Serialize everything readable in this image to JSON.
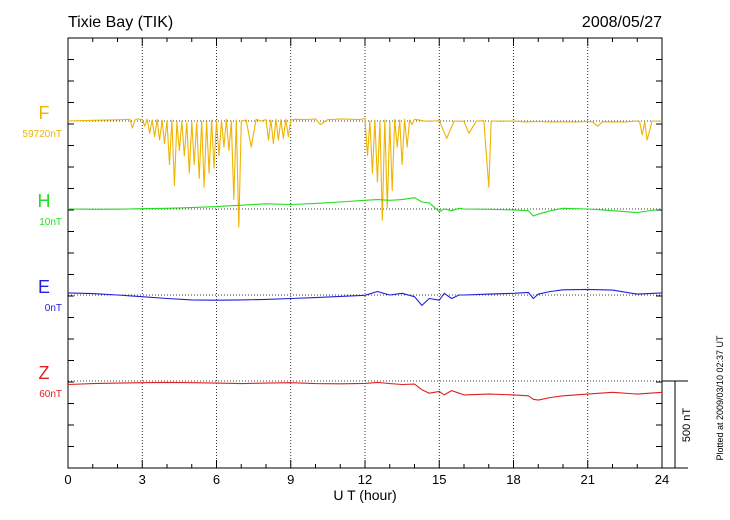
{
  "header": {
    "station": "Tixie Bay (TIK)",
    "date": "2008/05/27"
  },
  "plotted_note": "Plotted at 2009/03/10 02:37 UT",
  "scale_bar_label": "500 nT",
  "chart_data": {
    "type": "line",
    "title": "Tixie Bay (TIK)",
    "date": "2008/05/27",
    "xlabel": "U T (hour)",
    "ylabel": "",
    "xlim": [
      0,
      24
    ],
    "xticks": [
      0,
      3,
      6,
      9,
      12,
      15,
      18,
      21,
      24
    ],
    "grid": true,
    "scale_nT": 500,
    "series": [
      {
        "name": "F",
        "baseline_label": "59720nT",
        "color": "#f0b400",
        "offset_nT": 50,
        "x": [
          0,
          0.5,
          1,
          1.5,
          2,
          2.5,
          2.6,
          2.7,
          2.8,
          3.0,
          3.1,
          3.2,
          3.3,
          3.4,
          3.5,
          3.6,
          3.7,
          3.8,
          3.9,
          4.0,
          4.1,
          4.2,
          4.3,
          4.4,
          4.5,
          4.6,
          4.7,
          4.8,
          4.9,
          5.0,
          5.1,
          5.2,
          5.3,
          5.4,
          5.5,
          5.6,
          5.7,
          5.8,
          5.9,
          6.0,
          6.1,
          6.2,
          6.3,
          6.4,
          6.5,
          6.6,
          6.7,
          6.8,
          6.9,
          7.0,
          7.2,
          7.4,
          7.6,
          7.8,
          8.0,
          8.1,
          8.2,
          8.3,
          8.4,
          8.5,
          8.6,
          8.7,
          8.8,
          8.9,
          9.0,
          9.2,
          9.5,
          9.8,
          10.0,
          10.2,
          10.5,
          10.8,
          11.0,
          11.5,
          11.8,
          12.0,
          12.1,
          12.2,
          12.3,
          12.4,
          12.5,
          12.6,
          12.7,
          12.8,
          12.9,
          13.0,
          13.1,
          13.2,
          13.3,
          13.4,
          13.5,
          13.6,
          13.7,
          13.8,
          13.9,
          14.0,
          14.2,
          14.4,
          14.6,
          14.8,
          15.0,
          15.3,
          15.6,
          16.0,
          16.2,
          16.5,
          16.8,
          17.0,
          17.1,
          17.2,
          17.5,
          18.0,
          18.5,
          19.0,
          19.5,
          20.0,
          20.5,
          21.0,
          21.2,
          21.4,
          21.6,
          22.0,
          22.5,
          23.0,
          23.1,
          23.2,
          23.3,
          23.4,
          23.6,
          24.0
        ],
        "y": [
          50,
          52,
          54,
          55,
          57,
          60,
          10,
          55,
          62,
          58,
          20,
          60,
          -20,
          55,
          -40,
          60,
          -60,
          55,
          -80,
          50,
          -200,
          55,
          -320,
          45,
          -120,
          50,
          -150,
          40,
          -250,
          45,
          -200,
          40,
          -280,
          50,
          -330,
          45,
          -250,
          55,
          -220,
          50,
          -150,
          55,
          -100,
          60,
          -120,
          50,
          -400,
          55,
          -560,
          50,
          55,
          -100,
          60,
          50,
          58,
          -60,
          55,
          -80,
          60,
          -60,
          58,
          -50,
          60,
          -40,
          55,
          60,
          58,
          60,
          62,
          30,
          58,
          60,
          62,
          60,
          58,
          65,
          -150,
          50,
          -250,
          55,
          -300,
          50,
          -520,
          55,
          -450,
          45,
          -350,
          60,
          -100,
          55,
          -200,
          60,
          -100,
          55,
          30,
          60,
          55,
          50,
          48,
          50,
          52,
          -50,
          50,
          48,
          -20,
          50,
          52,
          -330,
          48,
          50,
          48,
          50,
          45,
          47,
          45,
          46,
          44,
          47,
          45,
          20,
          46,
          45,
          44,
          50,
          45,
          -30,
          46,
          -60,
          50,
          48
        ]
      },
      {
        "name": "H",
        "baseline_label": "10nT",
        "color": "#22dd22",
        "offset_nT": 10,
        "x": [
          0,
          1,
          2,
          3,
          4,
          5,
          6,
          7,
          8,
          9,
          10,
          11,
          12,
          12.5,
          13,
          13.5,
          14,
          14.3,
          14.6,
          15.0,
          15.2,
          15.5,
          15.8,
          16,
          17,
          18,
          18.6,
          18.8,
          19.0,
          19.5,
          20,
          21,
          22,
          23,
          24
        ],
        "y": [
          10,
          8,
          9,
          12,
          14,
          18,
          24,
          32,
          40,
          36,
          42,
          50,
          60,
          64,
          60,
          64,
          75,
          50,
          45,
          -5,
          10,
          0,
          14,
          10,
          8,
          4,
          0,
          -30,
          -20,
          0,
          14,
          10,
          0,
          -10,
          10
        ]
      },
      {
        "name": "E",
        "baseline_label": "0nT",
        "color": "#1f1fdd",
        "offset_nT": 0,
        "x": [
          0,
          1,
          2,
          3,
          4,
          5,
          6,
          7,
          8,
          9,
          10,
          11,
          12,
          12.5,
          13,
          13.5,
          14,
          14.3,
          14.6,
          15.0,
          15.2,
          15.5,
          15.8,
          16,
          17,
          18,
          18.6,
          18.8,
          19.0,
          19.5,
          20,
          21,
          22,
          23,
          24
        ],
        "y": [
          12,
          8,
          0,
          -10,
          -20,
          -28,
          -30,
          -28,
          -25,
          -20,
          -15,
          -8,
          -2,
          20,
          0,
          10,
          -10,
          -60,
          -20,
          -30,
          10,
          -20,
          0,
          0,
          5,
          10,
          15,
          -20,
          5,
          20,
          30,
          32,
          28,
          5,
          12
        ]
      },
      {
        "name": "Z",
        "baseline_label": "60nT",
        "color": "#e02020",
        "offset_nT": 60,
        "x": [
          0,
          1,
          2,
          3,
          4,
          5,
          6,
          7,
          8,
          9,
          10,
          11,
          12,
          12.5,
          13,
          13.5,
          14,
          14.3,
          14.6,
          15.0,
          15.2,
          15.5,
          15.8,
          16,
          17,
          18,
          18.6,
          18.8,
          19.0,
          19.5,
          20,
          21,
          22,
          23,
          24
        ],
        "y": [
          40,
          45,
          48,
          50,
          52,
          50,
          48,
          45,
          48,
          50,
          45,
          44,
          46,
          52,
          45,
          40,
          42,
          10,
          -10,
          0,
          -20,
          5,
          -10,
          -20,
          -15,
          -20,
          -25,
          -45,
          -50,
          -35,
          -25,
          -15,
          -5,
          -15,
          -5
        ]
      }
    ]
  }
}
